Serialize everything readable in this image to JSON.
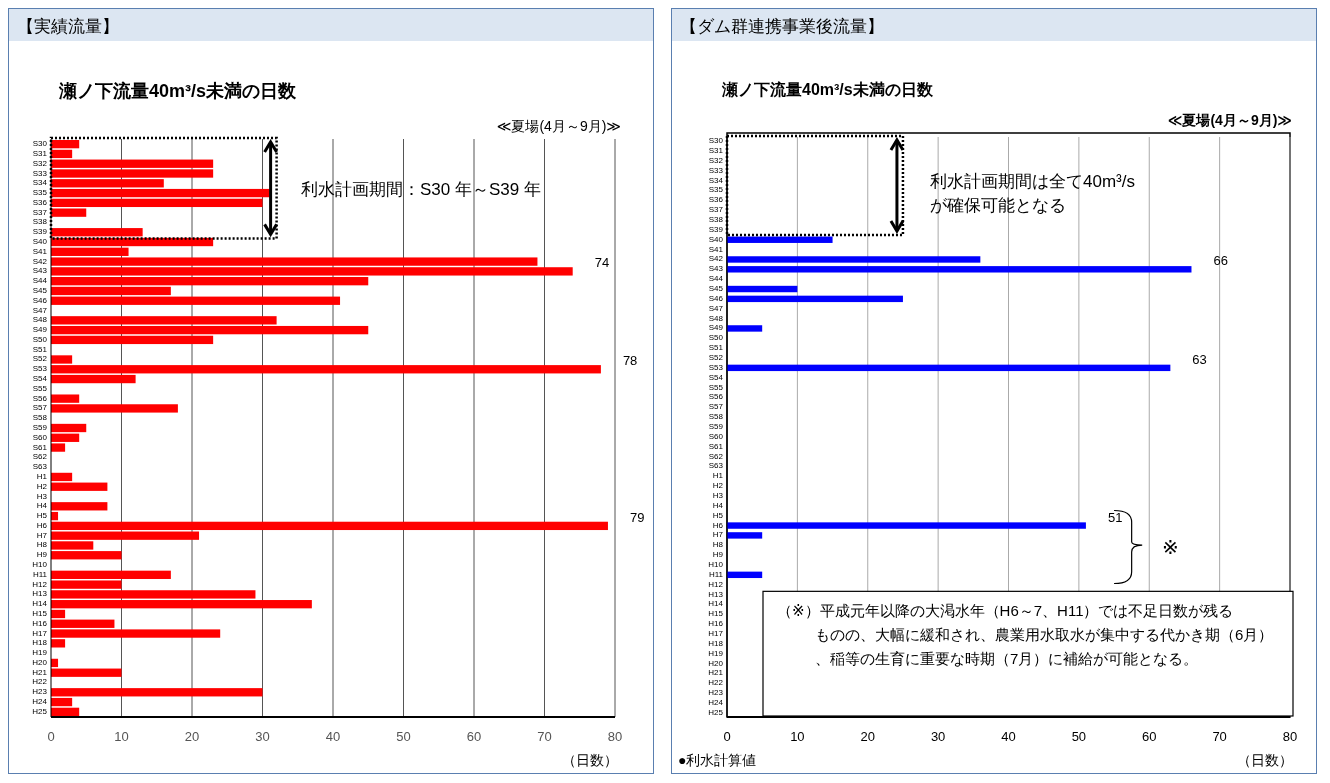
{
  "chart_data": [
    {
      "type": "bar",
      "orientation": "horizontal",
      "title": "瀬ノ下流量40m³/s未満の日数",
      "xlabel": "（日数）",
      "annotations": [
        "【実績流量】",
        "≪夏場(4月～9月)≫",
        "利水計画期間：S30 年～S39 年"
      ],
      "categories": [
        "S30",
        "S31",
        "S32",
        "S33",
        "S34",
        "S35",
        "S36",
        "S37",
        "S38",
        "S39",
        "S40",
        "S41",
        "S42",
        "S43",
        "S44",
        "S45",
        "S46",
        "S47",
        "S48",
        "S49",
        "S50",
        "S51",
        "S52",
        "S53",
        "S54",
        "S55",
        "S56",
        "S57",
        "S58",
        "S59",
        "S60",
        "S61",
        "S62",
        "S63",
        "H1",
        "H2",
        "H3",
        "H4",
        "H5",
        "H6",
        "H7",
        "H8",
        "H9",
        "H10",
        "H11",
        "H12",
        "H13",
        "H14",
        "H15",
        "H16",
        "H17",
        "H18",
        "H19",
        "H20",
        "H21",
        "H22",
        "H23",
        "H24",
        "H25"
      ],
      "series": [
        {
          "color": "#ff0000",
          "values": [
            4,
            3,
            23,
            23,
            16,
            31,
            30,
            5,
            0,
            13,
            23,
            11,
            69,
            74,
            45,
            17,
            41,
            0,
            32,
            45,
            23,
            0,
            3,
            78,
            12,
            0,
            4,
            18,
            0,
            5,
            4,
            2,
            0,
            0,
            3,
            8,
            0,
            8,
            1,
            79,
            21,
            6,
            10,
            0,
            17,
            10,
            29,
            37,
            2,
            9,
            24,
            2,
            0,
            1,
            10,
            0,
            30,
            3,
            4
          ],
          "value_labels": [
            null,
            null,
            null,
            null,
            null,
            null,
            null,
            null,
            null,
            null,
            null,
            null,
            null,
            "74",
            null,
            null,
            null,
            null,
            null,
            null,
            null,
            null,
            null,
            "78",
            null,
            null,
            null,
            null,
            null,
            null,
            null,
            null,
            null,
            null,
            null,
            null,
            null,
            null,
            null,
            "79",
            null,
            null,
            null,
            null,
            null,
            null,
            null,
            null,
            null,
            null,
            null,
            null,
            null,
            null,
            null,
            null,
            null,
            null,
            null
          ]
        }
      ],
      "xlim": [
        0,
        80
      ],
      "xticks": [
        0,
        10,
        20,
        30,
        40,
        50,
        60,
        70,
        80
      ],
      "grid": "x"
    },
    {
      "type": "bar",
      "orientation": "horizontal",
      "title": "瀬ノ下流量40m³/s未満の日数",
      "xlabel": "（日数）",
      "annotations": [
        "【ダム群連携事業後流量】",
        "≪夏場(4月～9月)≫",
        "利水計画期間は全て40m³/sが確保可能となる",
        "※",
        "（※）平成元年以降の大渇水年（H6～7、H11）では不足日数が残るものの、大幅に緩和され、農業用水取水が集中する代かき期（6月）、稲等の生育に重要な時期（7月）に補給が可能となる。",
        "●利水計算値"
      ],
      "categories": [
        "S30",
        "S31",
        "S32",
        "S33",
        "S34",
        "S35",
        "S36",
        "S37",
        "S38",
        "S39",
        "S40",
        "S41",
        "S42",
        "S43",
        "S44",
        "S45",
        "S46",
        "S47",
        "S48",
        "S49",
        "S50",
        "S51",
        "S52",
        "S53",
        "S54",
        "S55",
        "S56",
        "S57",
        "S58",
        "S59",
        "S60",
        "S61",
        "S62",
        "S63",
        "H1",
        "H2",
        "H3",
        "H4",
        "H5",
        "H6",
        "H7",
        "H8",
        "H9",
        "H10",
        "H11",
        "H12",
        "H13",
        "H14",
        "H15",
        "H16",
        "H17",
        "H18",
        "H19",
        "H20",
        "H21",
        "H22",
        "H23",
        "H24",
        "H25"
      ],
      "series": [
        {
          "color": "#0000ff",
          "values": [
            0,
            0,
            0,
            0,
            0,
            0,
            0,
            0,
            0,
            0,
            15,
            0,
            36,
            66,
            0,
            10,
            25,
            0,
            0,
            5,
            0,
            0,
            0,
            63,
            0,
            0,
            0,
            0,
            0,
            0,
            0,
            0,
            0,
            0,
            0,
            0,
            0,
            0,
            0,
            51,
            5,
            0,
            0,
            0,
            5,
            0,
            0,
            0,
            0,
            0,
            0,
            0,
            0,
            0,
            0,
            0,
            0,
            0,
            0
          ],
          "value_labels": [
            null,
            null,
            null,
            null,
            null,
            null,
            null,
            null,
            null,
            null,
            null,
            null,
            null,
            "66",
            null,
            null,
            null,
            null,
            null,
            null,
            null,
            null,
            null,
            "63",
            null,
            null,
            null,
            null,
            null,
            null,
            null,
            null,
            null,
            null,
            null,
            null,
            null,
            null,
            null,
            "51",
            null,
            null,
            null,
            null,
            null,
            null,
            null,
            null,
            null,
            null,
            null,
            null,
            null,
            null,
            null,
            null,
            null,
            null,
            null
          ]
        }
      ],
      "xlim": [
        0,
        80
      ],
      "xticks": [
        0,
        10,
        20,
        30,
        40,
        50,
        60,
        70,
        80
      ],
      "grid": "x"
    }
  ]
}
